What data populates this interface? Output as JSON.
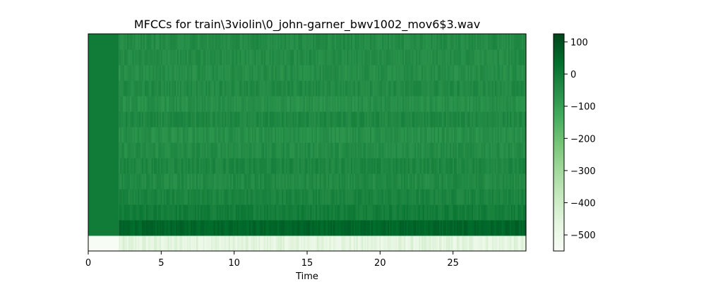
{
  "chart_data": {
    "type": "heatmap",
    "title": "MFCCs for train\\3violin\\0_john-garner_bwv1002_mov6$3.wav",
    "xlabel": "Time",
    "ylabel": "",
    "xlim": [
      0,
      30
    ],
    "x_ticks": [
      0,
      5,
      10,
      15,
      20,
      25
    ],
    "x_tick_labels": [
      "0",
      "5",
      "10",
      "15",
      "20",
      "25"
    ],
    "y_ticks_shown": false,
    "n_coefficients": 14,
    "silence_until": 2.1,
    "colormap": "Greens",
    "colorbar": {
      "range": [
        -550,
        125
      ],
      "ticks": [
        100,
        0,
        -100,
        -200,
        -300,
        -400,
        -500
      ],
      "tick_labels": [
        "100",
        "0",
        "−100",
        "−200",
        "−300",
        "−400",
        "−500"
      ]
    },
    "approx_row_levels": [
      -470,
      55,
      -5,
      -25,
      -40,
      -30,
      -45,
      -55,
      -35,
      -55,
      -40,
      -50,
      -45,
      -45
    ],
    "silence_levels": [
      -550,
      0,
      0,
      0,
      0,
      0,
      0,
      0,
      0,
      0,
      0,
      0,
      0,
      0
    ],
    "colors": {
      "darkest": "#00441b",
      "lightest": "#f7fcf5"
    }
  }
}
